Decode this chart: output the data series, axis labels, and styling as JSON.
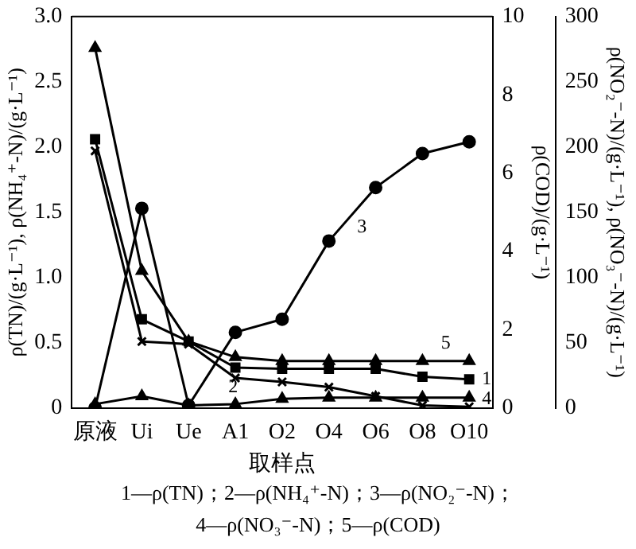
{
  "chart_data": {
    "type": "line",
    "categories": [
      "原液",
      "Ui",
      "Ue",
      "A1",
      "O2",
      "O4",
      "O6",
      "O8",
      "O10"
    ],
    "xlabel": "取样点",
    "ylabel": "ρ(TN)/(g·L⁻¹), ρ(NH₄⁺-N)/(g·L⁻¹)",
    "y2label": "ρ(COD)/(g·L⁻¹)",
    "y3label": "ρ(NO₂⁻-N)/(g·L⁻¹), ρ(NO₃⁻-N)/(g·L⁻¹)",
    "ylim": [
      0,
      3
    ],
    "yticks": [
      0,
      {
        "value": 0.5,
        "label": "0.5"
      },
      {
        "value": 1,
        "label": "1.0"
      },
      {
        "value": 1.5,
        "label": "1.5"
      },
      {
        "value": 2,
        "label": "2.0"
      },
      {
        "value": 2.5,
        "label": "2.5"
      },
      {
        "value": 3,
        "label": "3.0"
      }
    ],
    "y2lim": [
      0,
      10
    ],
    "y2ticks": [
      0,
      2,
      4,
      6,
      8,
      10
    ],
    "y3lim": [
      0,
      300
    ],
    "y3ticks": [
      0,
      50,
      100,
      150,
      200,
      250,
      300
    ],
    "legend": false,
    "grid": false,
    "series": [
      {
        "name": "1",
        "color": "#000000",
        "marker": "square",
        "values": [
          2.06,
          0.68,
          0.51,
          0.31,
          0.3,
          0.3,
          0.3,
          0.24,
          0.22
        ]
      },
      {
        "name": "2",
        "color": "#000000",
        "marker": "cross",
        "values": [
          1.97,
          0.51,
          0.49,
          0.23,
          0.2,
          0.16,
          0.09,
          0.02,
          0.01
        ]
      },
      {
        "name": "3",
        "color": "#000000",
        "marker": "circle",
        "axis": "y3",
        "values": [
          0,
          153,
          2,
          58,
          68,
          128,
          169,
          195,
          204
        ]
      },
      {
        "name": "4",
        "color": "#000000",
        "marker": "triangle",
        "axis": "y3",
        "values": [
          3,
          9,
          2,
          3,
          7,
          8,
          8,
          8,
          8
        ]
      },
      {
        "name": "5",
        "color": "#000000",
        "marker": "triangle",
        "axis": "y2",
        "values": [
          9.2,
          3.5,
          1.7,
          1.3,
          1.2,
          1.2,
          1.2,
          1.2,
          1.2
        ]
      }
    ],
    "annotations": [
      "1—ρ(TN)；2—ρ(NH₄⁺-N)；3—ρ(NO₂⁻-N)；",
      "4—ρ(NO₃⁻-N)；5—ρ(COD)"
    ]
  }
}
